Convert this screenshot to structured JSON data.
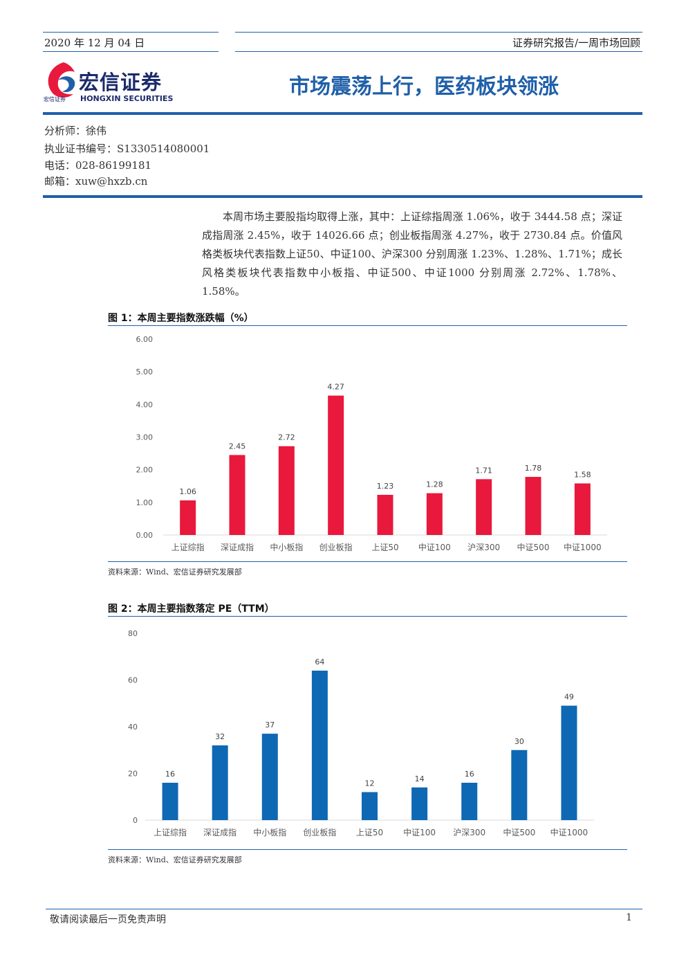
{
  "header": {
    "date": "2020 年 12 月 04 日",
    "report_type": "证券研究报告/一周市场回顾",
    "logo_cn": "宏信证券",
    "logo_en": "HONGXIN SECURITIES",
    "logo_small": "宏信证券",
    "title": "市场震荡上行，医药板块领涨"
  },
  "analyst": {
    "name": "分析师：徐伟",
    "license": "执业证书编号：S1330514080001",
    "phone": "电话：028-86199181",
    "email": "邮箱：xuw@hxzb.cn"
  },
  "summary": "本周市场主要股指均取得上涨，其中：上证综指周涨 1.06%，收于 3444.58 点；深证成指周涨 2.45%，收于 14026.66 点；创业板指周涨 4.27%，收于 2730.84 点。价值风格类板块代表指数上证50、中证100、沪深300 分别周涨 1.23%、1.28%、1.71%；成长风格类板块代表指数中小板指、中证500、中证1000 分别周涨 2.72%、1.78%、1.58%。",
  "figure1": {
    "title": "图 1：本周主要指数涨跌幅（%）",
    "source": "资料来源：Wind、宏信证券研究发展部"
  },
  "figure2": {
    "title": "图 2：本周主要指数落定 PE（TTM）",
    "source": "资料来源：Wind、宏信证券研究发展部"
  },
  "chart_data": [
    {
      "type": "bar",
      "categories": [
        "上证综指",
        "深证成指",
        "中小板指",
        "创业板指",
        "上证50",
        "中证100",
        "沪深300",
        "中证500",
        "中证1000"
      ],
      "values": [
        1.06,
        2.45,
        2.72,
        4.27,
        1.23,
        1.28,
        1.71,
        1.78,
        1.58
      ],
      "ylim": [
        0,
        6
      ],
      "yticks": [
        "0.00",
        "1.00",
        "2.00",
        "3.00",
        "4.00",
        "5.00",
        "6.00"
      ],
      "data_labels": [
        "1.06",
        "2.45",
        "2.72",
        "4.27",
        "1.23",
        "1.28",
        "1.71",
        "1.78",
        "1.58"
      ],
      "color": "#e8193c",
      "grid": false
    },
    {
      "type": "bar",
      "categories": [
        "上证综指",
        "深证成指",
        "中小板指",
        "创业板指",
        "上证50",
        "中证100",
        "沪深300",
        "中证500",
        "中证1000"
      ],
      "values": [
        16,
        32,
        37,
        64,
        12,
        14,
        16,
        30,
        49
      ],
      "ylim": [
        0,
        80
      ],
      "yticks": [
        "0",
        "20",
        "40",
        "60",
        "80"
      ],
      "data_labels": [
        "16",
        "32",
        "37",
        "64",
        "12",
        "14",
        "16",
        "30",
        "49"
      ],
      "color": "#0f68b4",
      "grid": false
    }
  ],
  "footer": {
    "note": "敬请阅读最后一页免责声明",
    "page": "1"
  }
}
